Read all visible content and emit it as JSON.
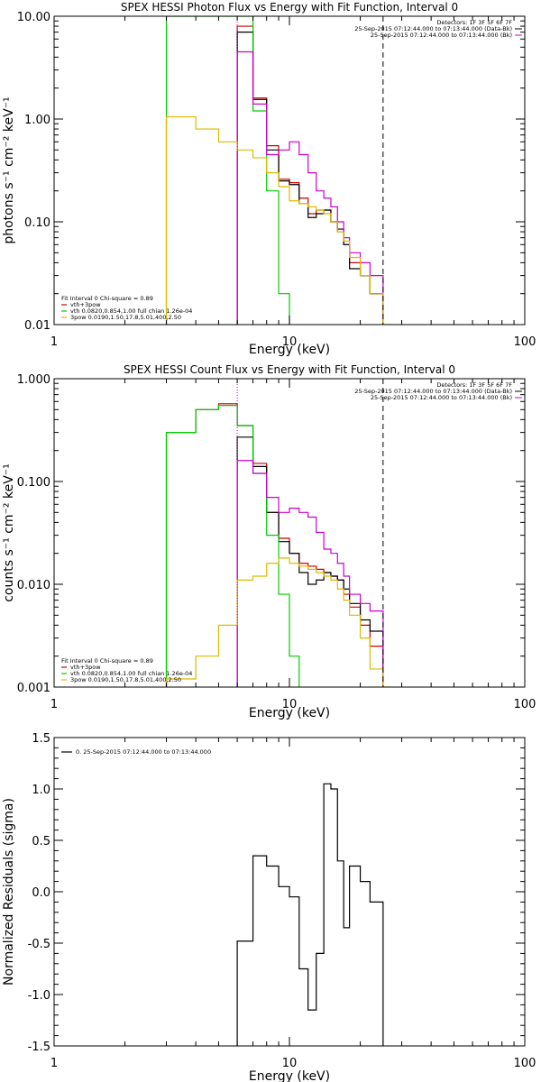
{
  "chart_data": [
    {
      "type": "line",
      "title": "SPEX HESSI Photon Flux vs Energy with Fit Function, Interval 0",
      "xlabel": "Energy (keV)",
      "ylabel": "photons s⁻¹ cm⁻² keV⁻¹",
      "xscale": "log",
      "yscale": "log",
      "xlim": [
        1,
        100
      ],
      "ylim": [
        0.01,
        10
      ],
      "x_ticks": [
        1,
        10,
        100
      ],
      "x_tick_labels": [
        "1",
        "10",
        "100"
      ],
      "y_ticks": [
        0.01,
        0.1,
        1,
        10
      ],
      "y_tick_labels": [
        "0.01",
        "0.10",
        "1.00",
        "10.00"
      ],
      "legend_top": [
        "Detectors: 1F 3F 5F 6F 7F",
        "25-Sep-2015 07:12:44.000 to 07:13:44.000 (Data-Bk)",
        "25-Sep-2015 07:12:44.000 to 07:13:44.000 (Bk)"
      ],
      "legend_bottom": [
        "Fit Interval 0   Chi-square = 0.89",
        "vth+3pow",
        "vth 0.0820,0.854,1.00  full chian 1.26e-04",
        "3pow 0.0190,1.50,17.8,5.01,400,2.50"
      ],
      "vlines": [
        {
          "x": 6.0,
          "color": "#cc00cc",
          "style": "dotted-magenta"
        },
        {
          "x": 25.0,
          "color": "#000000",
          "style": "dashed"
        }
      ],
      "series": [
        {
          "name": "vth+3pow",
          "color": "#cc0000",
          "edges": [
            6,
            7,
            8,
            9,
            10,
            11,
            12,
            13,
            14,
            15,
            16,
            17,
            18,
            20,
            22,
            25
          ],
          "values": [
            8.0,
            1.6,
            0.55,
            0.26,
            0.24,
            0.17,
            0.12,
            0.13,
            0.13,
            0.1,
            0.08,
            0.06,
            0.04,
            0.03,
            0.02
          ]
        },
        {
          "name": "25-Sep-2015 07:12:44.000 to 07:13:44.000 (Data-Bk)",
          "color": "#000000",
          "edges": [
            6,
            7,
            8,
            9,
            10,
            11,
            12,
            13,
            14,
            15,
            16,
            17,
            18,
            20,
            22,
            25
          ],
          "values": [
            7.0,
            1.55,
            0.5,
            0.25,
            0.23,
            0.15,
            0.11,
            0.12,
            0.13,
            0.1,
            0.085,
            0.06,
            0.035,
            0.03,
            0.02
          ]
        },
        {
          "name": "vth 0.0820,0.854,1.00  full chian 1.26e-04",
          "color": "#00cc00",
          "edges": [
            3,
            6,
            7,
            8,
            9,
            10
          ],
          "values": [
            10.0,
            10.0,
            1.2,
            0.2,
            0.02
          ]
        },
        {
          "name": "25-Sep-2015 07:12:44.000 to 07:13:44.000 (Bk)",
          "color": "#cc00cc",
          "edges": [
            6,
            7,
            8,
            9,
            10,
            11,
            12,
            13,
            14,
            15,
            16,
            17,
            18,
            20,
            22,
            25
          ],
          "values": [
            4.5,
            1.4,
            0.45,
            0.5,
            0.6,
            0.45,
            0.3,
            0.2,
            0.17,
            0.14,
            0.1,
            0.07,
            0.05,
            0.04,
            0.03
          ]
        },
        {
          "name": "3pow 0.0190,1.50,17.8,5.01,400,2.50",
          "color": "#ddbb00",
          "edges": [
            3,
            4,
            5,
            6,
            7,
            8,
            9,
            10,
            11,
            12,
            13,
            14,
            15,
            16,
            17,
            18,
            20,
            22,
            25,
            27
          ],
          "values": [
            1.05,
            0.8,
            0.6,
            0.5,
            0.42,
            0.3,
            0.22,
            0.16,
            0.15,
            0.14,
            0.13,
            0.12,
            0.1,
            0.08,
            0.065,
            0.045,
            0.03,
            0.02,
            0.01
          ]
        }
      ]
    },
    {
      "type": "line",
      "title": "SPEX HESSI Count Flux vs Energy with Fit Function, Interval 0",
      "xlabel": "Energy (keV)",
      "ylabel": "counts s⁻¹ cm⁻² keV⁻¹",
      "xscale": "log",
      "yscale": "log",
      "xlim": [
        1,
        100
      ],
      "ylim": [
        0.001,
        1
      ],
      "x_ticks": [
        1,
        10,
        100
      ],
      "x_tick_labels": [
        "1",
        "10",
        "100"
      ],
      "y_ticks": [
        0.001,
        0.01,
        0.1,
        1
      ],
      "y_tick_labels": [
        "0.001",
        "0.010",
        "0.100",
        "1.000"
      ],
      "legend_top": [
        "Detectors: 1F 3F 5F 6F 7F",
        "25-Sep-2015 07:12:44.000 to 07:13:44.000 (Data-Bk)",
        "25-Sep-2015 07:12:44.000 to 07:13:44.000 (Bk)"
      ],
      "legend_bottom": [
        "Fit Interval 0   Chi-square = 0.89",
        "vth+3pow",
        "vth 0.0820,0.854,1.00  full chian 1.26e-04",
        "3pow 0.0190,1.50,17.8,5.01,400,2.50"
      ],
      "vlines": [
        {
          "x": 6.0,
          "color": "#cc00cc",
          "style": "dotted-magenta"
        },
        {
          "x": 25.0,
          "color": "#000000",
          "style": "dashed"
        }
      ],
      "series": [
        {
          "name": "vth+3pow",
          "color": "#cc0000",
          "edges": [
            3,
            4,
            5,
            6,
            7,
            8,
            9,
            10,
            11,
            12,
            13,
            14,
            15,
            16,
            17,
            18,
            20,
            22,
            25
          ],
          "values": [
            0.3,
            0.5,
            0.57,
            0.35,
            0.15,
            0.05,
            0.028,
            0.02,
            0.016,
            0.015,
            0.014,
            0.013,
            0.012,
            0.011,
            0.008,
            0.006,
            0.004,
            0.0025
          ]
        },
        {
          "name": "25-Sep-2015 07:12:44.000 to 07:13:44.000 (Data-Bk)",
          "color": "#000000",
          "edges": [
            6,
            7,
            8,
            9,
            10,
            11,
            12,
            13,
            14,
            15,
            16,
            17,
            18,
            20,
            22,
            25
          ],
          "values": [
            0.27,
            0.14,
            0.05,
            0.026,
            0.02,
            0.013,
            0.01,
            0.011,
            0.013,
            0.012,
            0.011,
            0.009,
            0.0065,
            0.0045,
            0.0035
          ]
        },
        {
          "name": "vth 0.0820,0.854,1.00  full chian 1.26e-04",
          "color": "#00cc00",
          "edges": [
            3,
            4,
            5,
            6,
            7,
            8,
            9,
            10,
            11
          ],
          "values": [
            0.3,
            0.5,
            0.55,
            0.35,
            0.12,
            0.03,
            0.008,
            0.002
          ]
        },
        {
          "name": "25-Sep-2015 07:12:44.000 to 07:13:44.000 (Bk)",
          "color": "#cc00cc",
          "edges": [
            6,
            7,
            8,
            9,
            10,
            11,
            12,
            13,
            14,
            15,
            16,
            17,
            18,
            20,
            22,
            25
          ],
          "values": [
            0.16,
            0.12,
            0.07,
            0.05,
            0.055,
            0.05,
            0.045,
            0.032,
            0.022,
            0.02,
            0.016,
            0.012,
            0.008,
            0.0065,
            0.0055
          ]
        },
        {
          "name": "3pow 0.0190,1.50,17.8,5.01,400,2.50",
          "color": "#ddbb00",
          "edges": [
            3,
            4,
            5,
            6,
            7,
            8,
            9,
            10,
            11,
            12,
            13,
            14,
            15,
            16,
            17,
            18,
            20,
            22,
            25,
            27
          ],
          "values": [
            0.0012,
            0.002,
            0.004,
            0.011,
            0.012,
            0.016,
            0.018,
            0.016,
            0.015,
            0.014,
            0.013,
            0.012,
            0.011,
            0.009,
            0.007,
            0.005,
            0.003,
            0.0015,
            0.001
          ]
        }
      ]
    },
    {
      "type": "line",
      "title": "",
      "xlabel": "Energy (keV)",
      "ylabel": "Normalized Residuals (sigma)",
      "xscale": "log",
      "yscale": "linear",
      "xlim": [
        1,
        100
      ],
      "ylim": [
        -1.5,
        1.5
      ],
      "x_ticks": [
        1,
        10,
        100
      ],
      "x_tick_labels": [
        "1",
        "10",
        "100"
      ],
      "y_ticks": [
        -1.5,
        -1.0,
        -0.5,
        0.0,
        0.5,
        1.0,
        1.5
      ],
      "y_tick_labels": [
        "-1.5",
        "-1.0",
        "-0.5",
        "0.0",
        "0.5",
        "1.0",
        "1.5"
      ],
      "legend_top": [
        "0. 25-Sep-2015 07:12:44.000 to 07:13:44.000"
      ],
      "legend_bottom": [],
      "vlines": [],
      "series": [
        {
          "name": "0. 25-Sep-2015 07:12:44.000 to 07:13:44.000",
          "color": "#000000",
          "edges": [
            6,
            7,
            8,
            9,
            10,
            11,
            12,
            13,
            14,
            15,
            16,
            17,
            18,
            20,
            22,
            25
          ],
          "values": [
            -0.48,
            0.35,
            0.25,
            0.05,
            -0.05,
            -0.75,
            -1.15,
            -0.6,
            1.05,
            1.0,
            0.3,
            -0.35,
            0.25,
            0.1,
            -0.1
          ]
        }
      ]
    }
  ]
}
